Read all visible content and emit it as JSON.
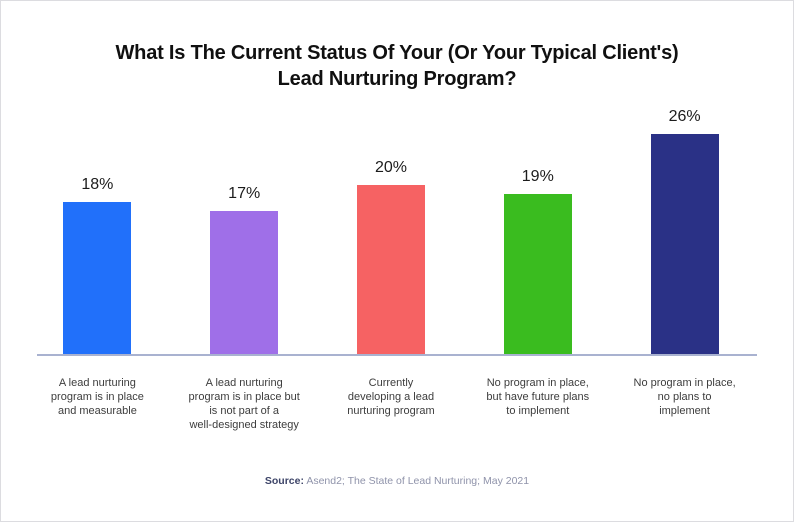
{
  "title": {
    "line1": "What Is The Current Status Of Your (Or Your Typical Client's)",
    "line2": "Lead Nurturing Program?"
  },
  "chart_data": {
    "type": "bar",
    "title": "What Is The Current Status Of Your (Or Your Typical Client's) Lead Nurturing Program?",
    "categories": [
      "A lead nurturing program is in place and measurable",
      "A lead nurturing program is in place but is not part of a well-designed strategy",
      "Currently developing a lead nurturing program",
      "No program in place, but have future plans to implement",
      "No program in place, no plans to implement"
    ],
    "category_display": [
      "A lead nurturing\nprogram is in place\nand measurable",
      "A lead nurturing\nprogram is in place but\nis not part of a\nwell-designed strategy",
      "Currently\ndeveloping a lead\nnurturing program",
      "No program in place,\nbut have future plans\nto implement",
      "No program in place,\nno plans to\nimplement"
    ],
    "values": [
      18,
      17,
      20,
      19,
      26
    ],
    "value_labels": [
      "18%",
      "17%",
      "20%",
      "19%",
      "26%"
    ],
    "bar_colors": [
      "#2170fa",
      "#9f6fe8",
      "#f66263",
      "#3abc1f",
      "#2a3186"
    ],
    "ylim": [
      0,
      28
    ],
    "xlabel": "",
    "ylabel": "",
    "grid": false,
    "legend": false,
    "axis_line_color": "#a9b2d0"
  },
  "source": {
    "label": "Source:",
    "text": "Asend2; The State of Lead Nurturing; May 2021"
  }
}
